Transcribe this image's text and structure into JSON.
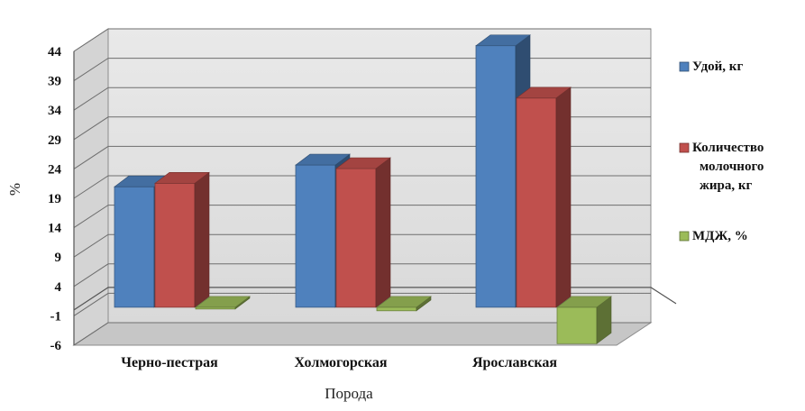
{
  "chart_data": {
    "type": "bar",
    "categories": [
      "Черно-пестрая",
      "Холмогорская",
      "Ярославская"
    ],
    "series": [
      {
        "name": "Удой, кг",
        "values": [
          20.5,
          24.2,
          44.5
        ],
        "color": "#4f81bd"
      },
      {
        "name": "Количество молочного жира, кг",
        "legend_lines": [
          "Количество",
          "молочного",
          "жира, кг"
        ],
        "values": [
          21.1,
          23.6,
          35.6
        ],
        "color": "#c0504d"
      },
      {
        "name": "МДЖ, %",
        "values": [
          -0.3,
          -0.6,
          -6.2
        ],
        "color": "#9bbb59"
      }
    ],
    "xlabel": "Порода",
    "ylabel": "%",
    "ylim": [
      -6,
      44
    ],
    "yticks": [
      "44",
      "39",
      "34",
      "29",
      "24",
      "19",
      "14",
      "9",
      "4",
      "-1",
      "-6"
    ],
    "grid": true,
    "three_d": true,
    "legend_position": "right"
  }
}
